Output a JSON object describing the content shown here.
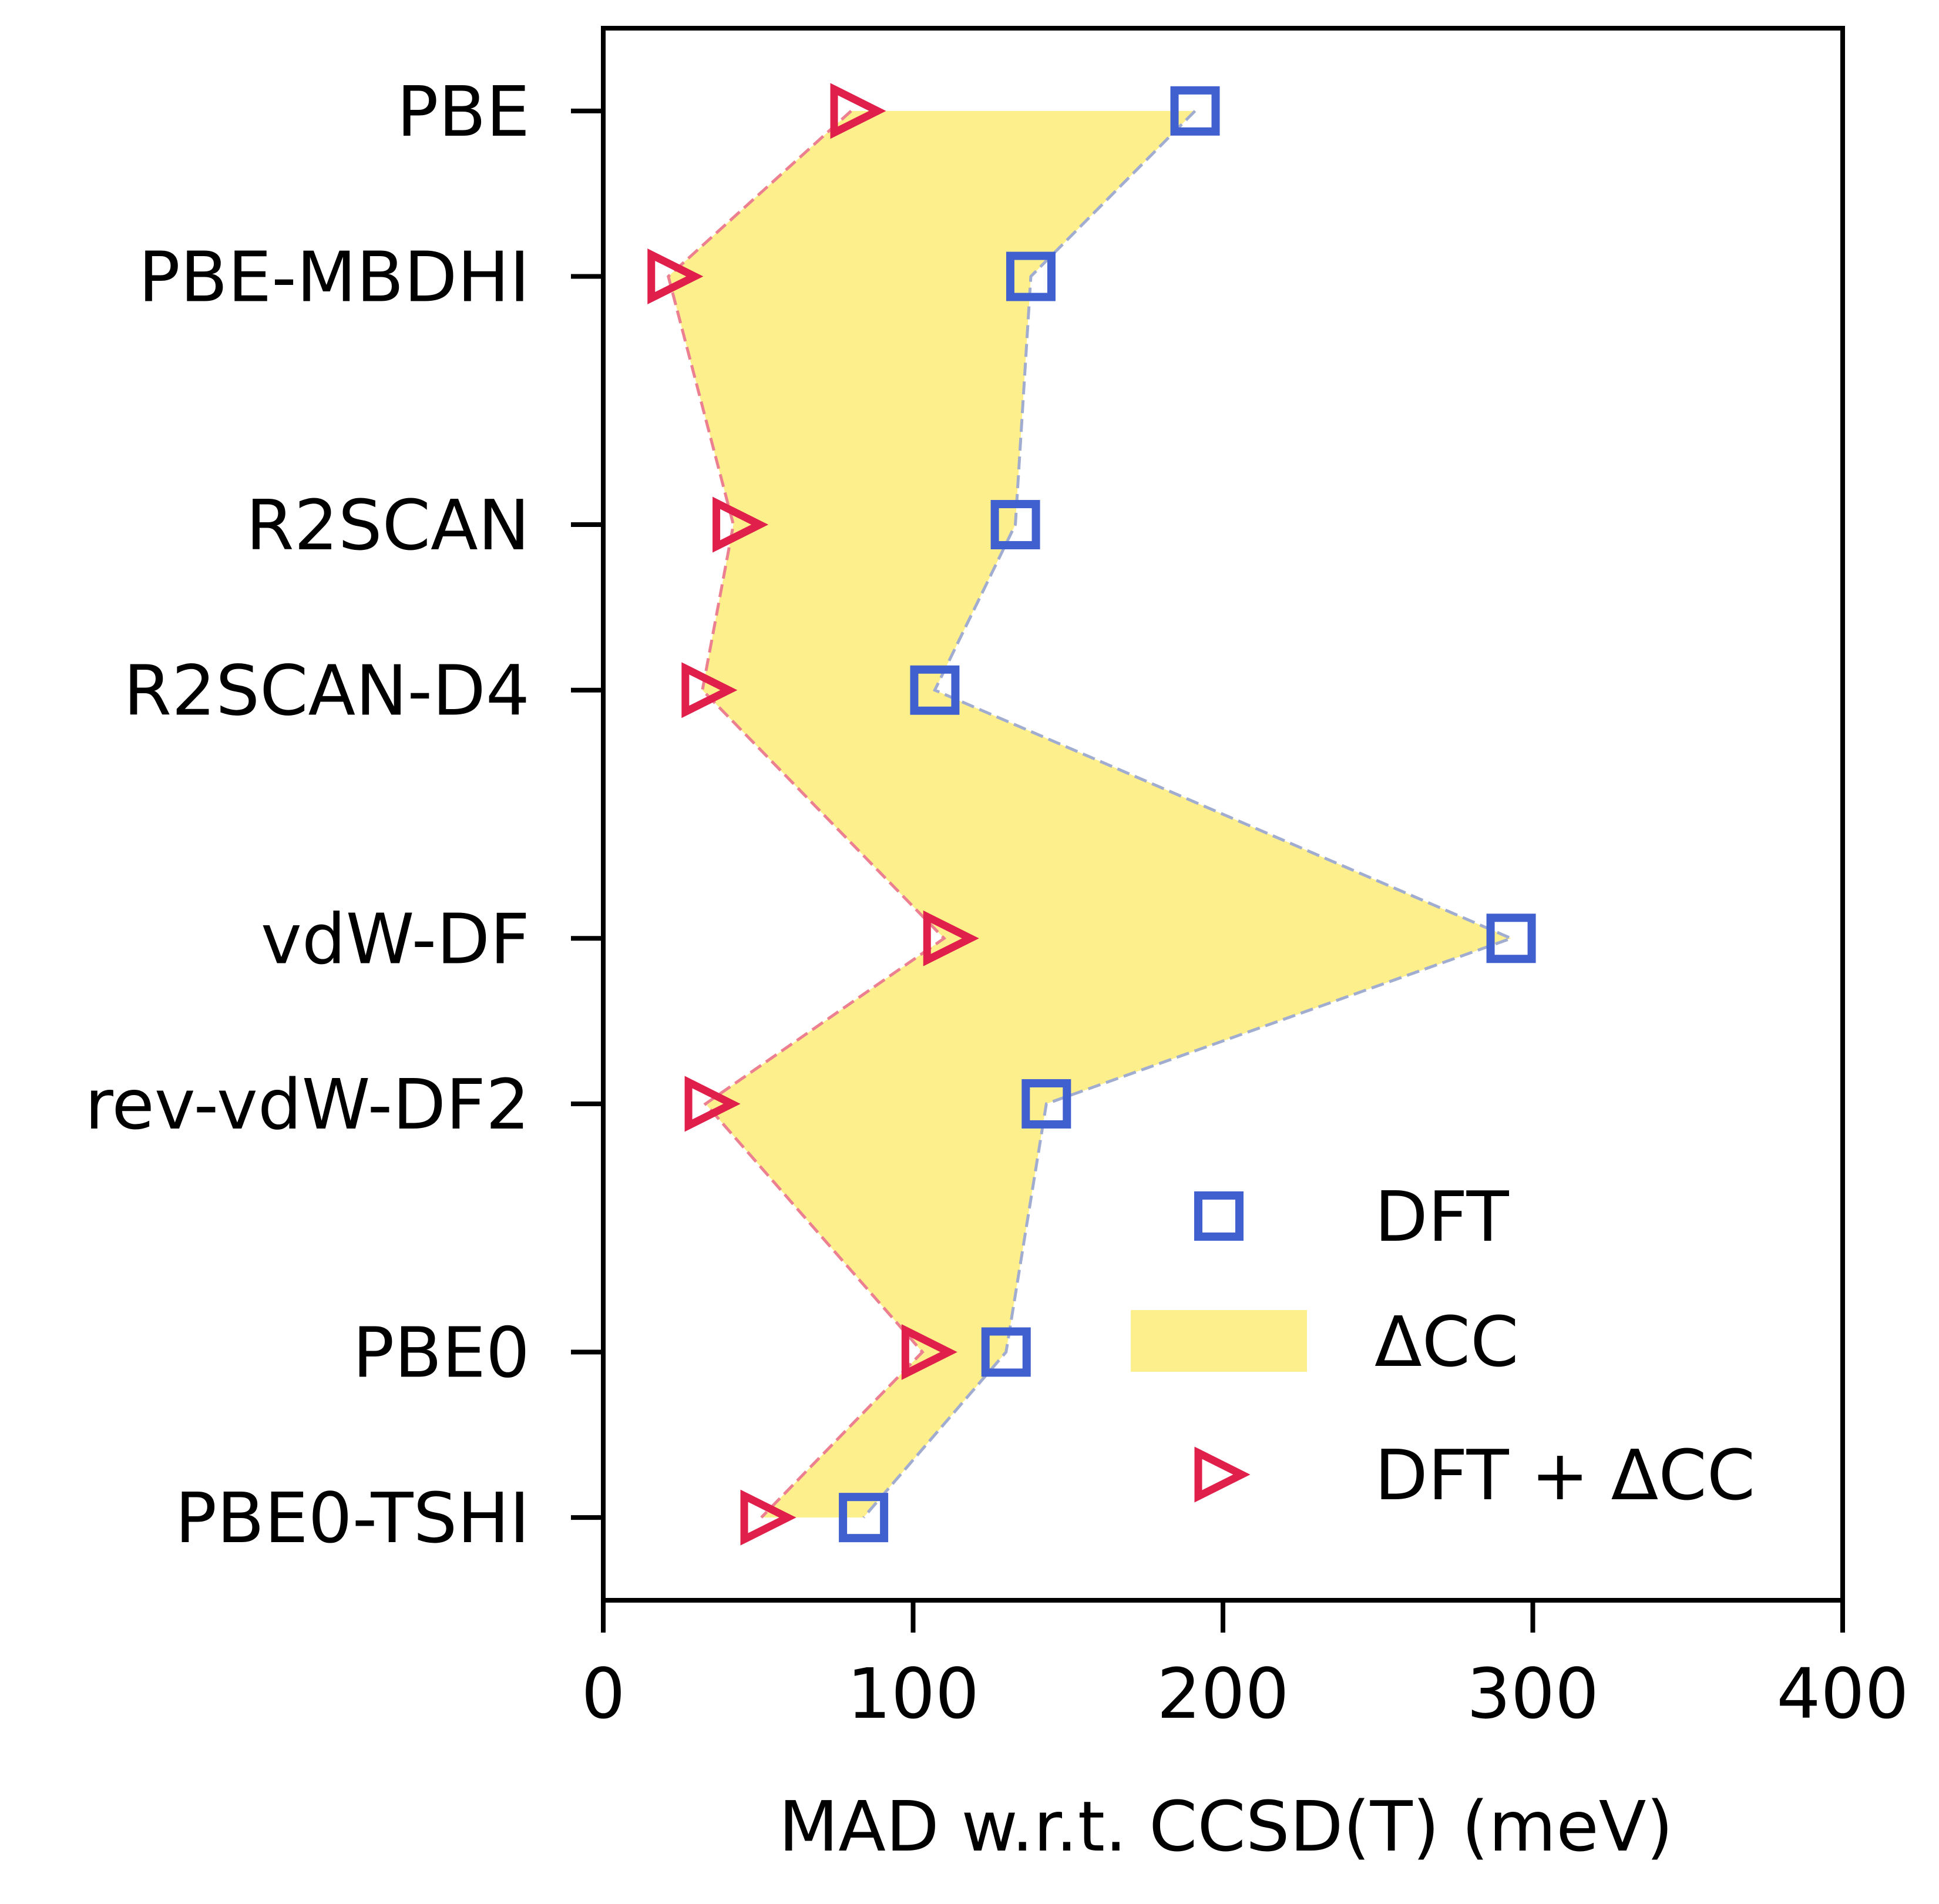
{
  "chart_data": {
    "type": "scatter",
    "orientation": "horizontal",
    "categories": [
      "PBE",
      "PBE-MBDHI",
      "R2SCAN",
      "R2SCAN-D4",
      "vdW-DF",
      "rev-vdW-DF2",
      "PBE0",
      "PBE0-TSHI"
    ],
    "category_positions": [
      0,
      1,
      2.5,
      3.5,
      5,
      6,
      7.5,
      8.5
    ],
    "series": [
      {
        "name": "DFT",
        "values": [
          191,
          138,
          133,
          107,
          293,
          143,
          130,
          84
        ]
      },
      {
        "name": "DFT + ΔCC",
        "values": [
          80,
          21,
          42,
          32,
          110,
          33,
          103,
          51
        ]
      }
    ],
    "fill": {
      "name": "ΔCC",
      "between": [
        "DFT",
        "DFT + ΔCC"
      ]
    },
    "xlabel": "MAD w.r.t. CCSD(T) (meV)",
    "ylabel": "",
    "xlim": [
      0,
      400
    ],
    "xticks": [
      "0",
      "100",
      "200",
      "300",
      "400"
    ],
    "ylim": [
      -0.5,
      9.0
    ],
    "grid": false,
    "legend_position": "lower-right",
    "colors": {
      "dft": "#4060d0",
      "dft_line": "#a0acd0",
      "dcc": "#e0204a",
      "dcc_line": "#ec8090",
      "fill": "#fdef8c"
    }
  }
}
